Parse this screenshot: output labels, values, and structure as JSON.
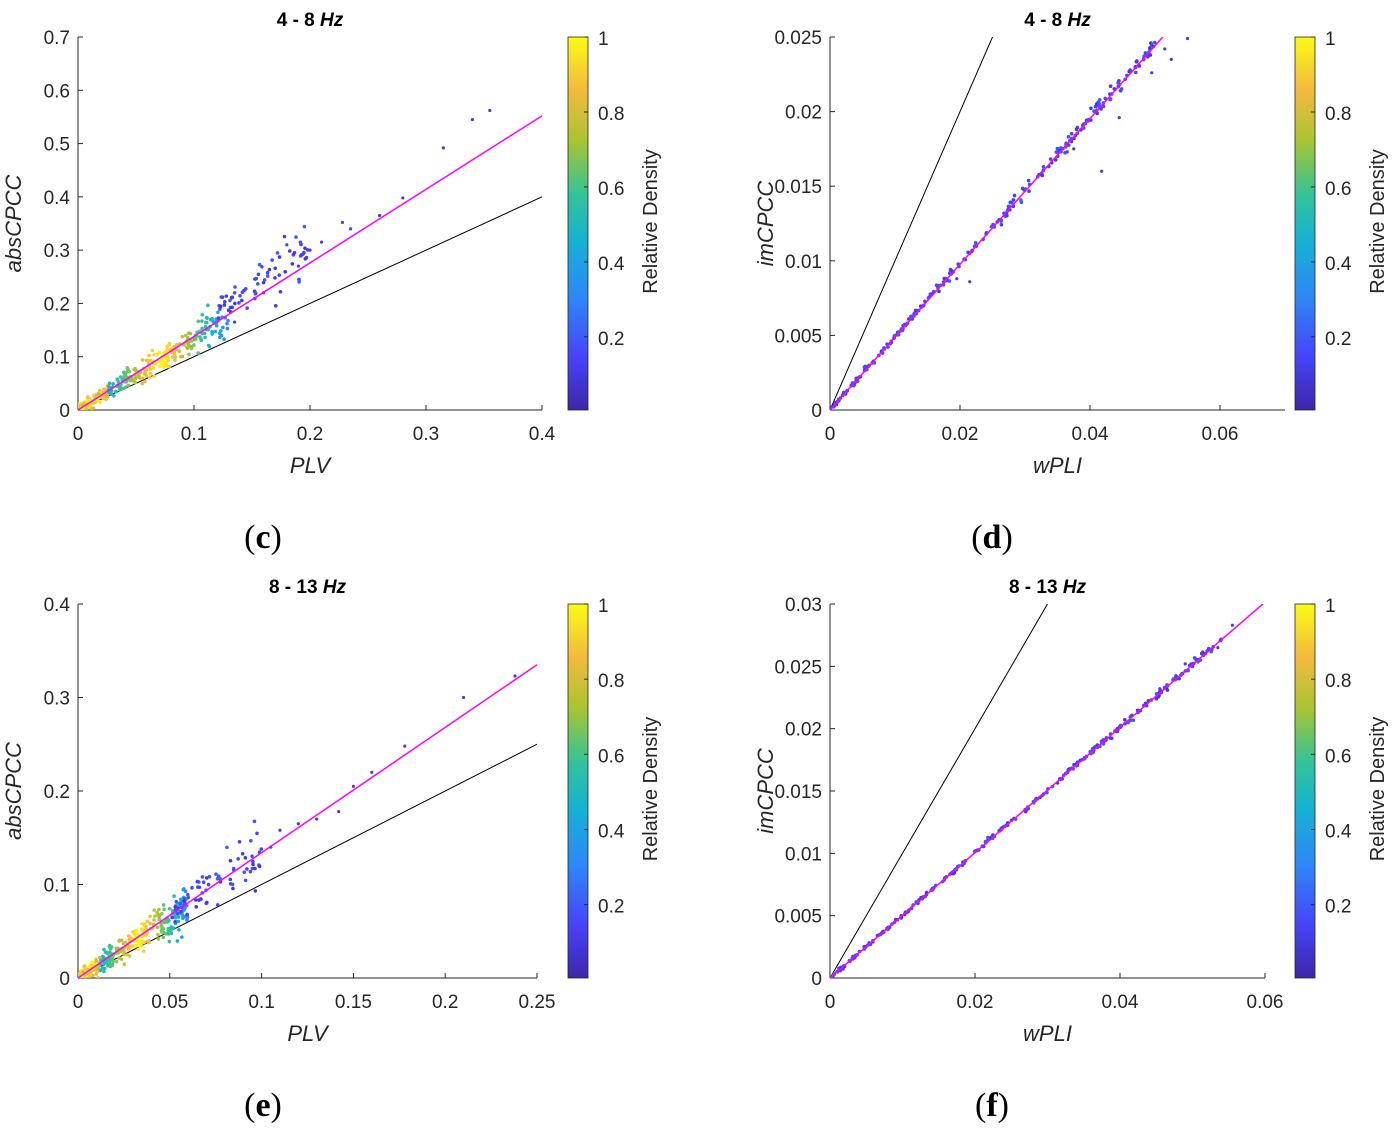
{
  "figure": {
    "colorbar_label": "Relative Density",
    "colorbar_ticks": [
      "0.2",
      "0.4",
      "0.6",
      "0.8",
      "1"
    ],
    "colormap": [
      "#3e26a8",
      "#4743f8",
      "#2e87f7",
      "#15b1d3",
      "#35c397",
      "#a8c432",
      "#f5ba3d",
      "#f9fb15"
    ],
    "fit_line_color": "#ff00ff",
    "identity_line_color": "#000000",
    "marker_color_low": "#4a3de0"
  },
  "chart_data": [
    {
      "id": "c",
      "caption": "c",
      "type": "scatter",
      "title_prefix": "4 - 8",
      "title_unit": "Hz",
      "xlabel": "PLV",
      "ylabel": "absCPCC",
      "xlim": [
        0,
        0.4
      ],
      "ylim": [
        0,
        0.7
      ],
      "xticks": [
        "0",
        "0.1",
        "0.2",
        "0.3",
        "0.4"
      ],
      "yticks": [
        "0",
        "0.1",
        "0.2",
        "0.3",
        "0.4",
        "0.5",
        "0.6",
        "0.7"
      ],
      "identity_line": [
        [
          0,
          0
        ],
        [
          0.4,
          0.4
        ]
      ],
      "fit_line": [
        [
          0,
          0
        ],
        [
          0.4,
          0.552
        ]
      ],
      "outliers": [
        [
          0.355,
          0.562
        ],
        [
          0.34,
          0.545
        ],
        [
          0.315,
          0.492
        ],
        [
          0.28,
          0.398
        ],
        [
          0.26,
          0.365
        ],
        [
          0.235,
          0.34
        ],
        [
          0.228,
          0.352
        ],
        [
          0.21,
          0.315
        ],
        [
          0.2,
          0.3
        ],
        [
          0.19,
          0.27
        ],
        [
          0.18,
          0.31
        ],
        [
          0.16,
          0.22
        ],
        [
          0.135,
          0.165
        ]
      ],
      "clusters": [
        {
          "x0": 0,
          "x1": 0.13,
          "slope": 1.35,
          "spread": 0.012,
          "count": 320,
          "density": "high-low"
        },
        {
          "x0": 0.12,
          "x1": 0.2,
          "slope": 1.55,
          "spread": 0.02,
          "count": 70,
          "density": "low"
        }
      ]
    },
    {
      "id": "d",
      "caption": "d",
      "type": "scatter",
      "title_prefix": "4 - 8",
      "title_unit": "Hz",
      "xlabel": "wPLI",
      "ylabel": "imCPCC",
      "xlim": [
        0,
        0.07
      ],
      "ylim": [
        0,
        0.025
      ],
      "xticks": [
        "0",
        "0.02",
        "0.04",
        "0.06"
      ],
      "yticks": [
        "0",
        "0.005",
        "0.01",
        "0.015",
        "0.02",
        "0.025"
      ],
      "identity_line": [
        [
          0,
          0
        ],
        [
          0.025,
          0.025
        ]
      ],
      "fit_line": [
        [
          0,
          0
        ],
        [
          0.0512,
          0.025
        ]
      ],
      "outliers": [
        [
          0.055,
          0.0249
        ],
        [
          0.0525,
          0.0235
        ],
        [
          0.0515,
          0.0242
        ],
        [
          0.0495,
          0.0226
        ],
        [
          0.0445,
          0.0196
        ],
        [
          0.0418,
          0.016
        ],
        [
          0.0375,
          0.0175
        ],
        [
          0.0365,
          0.0173
        ],
        [
          0.0215,
          0.0086
        ],
        [
          0.0195,
          0.0088
        ]
      ],
      "clusters": [
        {
          "x0": 0,
          "x1": 0.05,
          "slope": 0.49,
          "spread": 0.00018,
          "count": 260,
          "density": "low"
        }
      ]
    },
    {
      "id": "e",
      "caption": "e",
      "type": "scatter",
      "title_prefix": "8 - 13",
      "title_unit": "Hz",
      "xlabel": "PLV",
      "ylabel": "absCPCC",
      "xlim": [
        0,
        0.25
      ],
      "ylim": [
        0,
        0.4
      ],
      "xticks": [
        "0",
        "0.05",
        "0.1",
        "0.15",
        "0.2",
        "0.25"
      ],
      "yticks": [
        "0",
        "0.1",
        "0.2",
        "0.3",
        "0.4"
      ],
      "identity_line": [
        [
          0,
          0
        ],
        [
          0.25,
          0.25
        ]
      ],
      "fit_line": [
        [
          0,
          0
        ],
        [
          0.25,
          0.335
        ]
      ],
      "outliers": [
        [
          0.238,
          0.323
        ],
        [
          0.21,
          0.3
        ],
        [
          0.178,
          0.248
        ],
        [
          0.16,
          0.22
        ],
        [
          0.15,
          0.205
        ],
        [
          0.142,
          0.178
        ],
        [
          0.13,
          0.17
        ],
        [
          0.12,
          0.165
        ],
        [
          0.11,
          0.158
        ],
        [
          0.105,
          0.14
        ]
      ],
      "clusters": [
        {
          "x0": 0,
          "x1": 0.06,
          "slope": 1.3,
          "spread": 0.008,
          "count": 340,
          "density": "high-low"
        },
        {
          "x0": 0.05,
          "x1": 0.1,
          "slope": 1.38,
          "spread": 0.012,
          "count": 70,
          "density": "low"
        }
      ]
    },
    {
      "id": "f",
      "caption": "f",
      "type": "scatter",
      "title_prefix": "8 - 13",
      "title_unit": "Hz",
      "xlabel": "wPLI",
      "ylabel": "imCPCC",
      "xlim": [
        0,
        0.06
      ],
      "ylim": [
        0,
        0.03
      ],
      "xticks": [
        "0",
        "0.02",
        "0.04",
        "0.06"
      ],
      "yticks": [
        "0",
        "0.005",
        "0.01",
        "0.015",
        "0.02",
        "0.025",
        "0.03"
      ],
      "identity_line": [
        [
          0,
          0
        ],
        [
          0.03,
          0.03
        ]
      ],
      "fit_line": [
        [
          0,
          0
        ],
        [
          0.0599,
          0.0301
        ]
      ],
      "outliers": [
        [
          0.0555,
          0.0283
        ],
        [
          0.0535,
          0.0265
        ],
        [
          0.052,
          0.0262
        ],
        [
          0.049,
          0.0252
        ],
        [
          0.048,
          0.024
        ],
        [
          0.0455,
          0.0232
        ]
      ],
      "clusters": [
        {
          "x0": 0,
          "x1": 0.054,
          "slope": 0.503,
          "spread": 0.00012,
          "count": 280,
          "density": "low"
        }
      ]
    }
  ]
}
